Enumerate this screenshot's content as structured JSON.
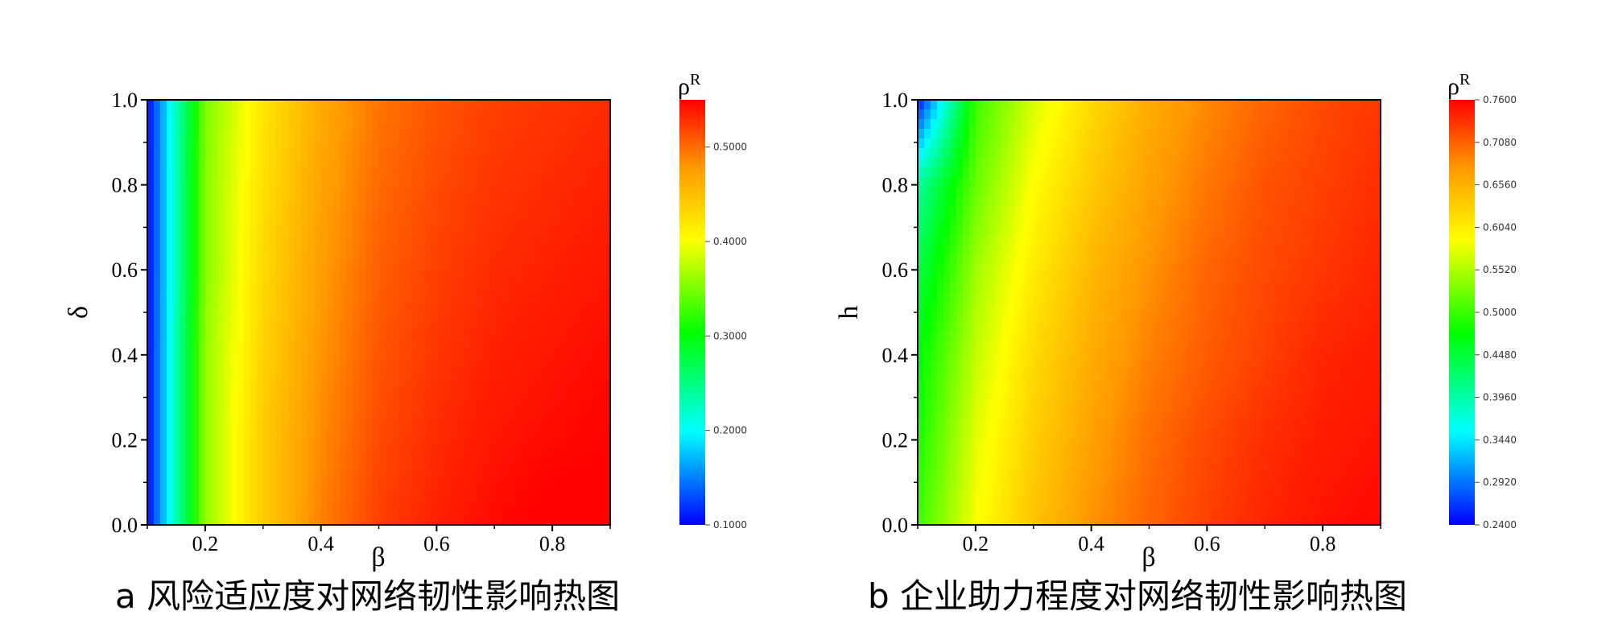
{
  "chart_data": [
    {
      "type": "heatmap",
      "caption": "a 风险适应度对网络韧性影响热图",
      "xlabel": "β",
      "ylabel": "δ",
      "colorbar_title": "ρ",
      "colorbar_title_sup": "R",
      "xlim": [
        0.1,
        0.9
      ],
      "ylim": [
        0.0,
        1.0
      ],
      "x_ticks": [
        0.2,
        0.4,
        0.6,
        0.8
      ],
      "x_tick_labels": [
        "0.2",
        "0.4",
        "0.6",
        "0.8"
      ],
      "y_ticks": [
        0.0,
        0.2,
        0.4,
        0.6,
        0.8,
        1.0
      ],
      "y_tick_labels": [
        "0.0",
        "0.2",
        "0.4",
        "0.6",
        "0.8",
        "1.0"
      ],
      "x": [
        0.1,
        0.2,
        0.3,
        0.4,
        0.5,
        0.6,
        0.7,
        0.8,
        0.9
      ],
      "y": [
        0.0,
        0.2,
        0.4,
        0.6,
        0.8,
        1.0
      ],
      "z": [
        [
          0.1,
          0.36,
          0.44,
          0.49,
          0.52,
          0.535,
          0.545,
          0.555,
          0.55
        ],
        [
          0.1,
          0.36,
          0.44,
          0.485,
          0.515,
          0.53,
          0.54,
          0.545,
          0.55
        ],
        [
          0.1,
          0.36,
          0.435,
          0.48,
          0.51,
          0.525,
          0.535,
          0.54,
          0.545
        ],
        [
          0.1,
          0.355,
          0.43,
          0.475,
          0.505,
          0.52,
          0.53,
          0.535,
          0.54
        ],
        [
          0.1,
          0.355,
          0.425,
          0.47,
          0.5,
          0.515,
          0.525,
          0.53,
          0.535
        ],
        [
          0.1,
          0.35,
          0.42,
          0.465,
          0.495,
          0.51,
          0.52,
          0.525,
          0.53
        ]
      ],
      "colorbar_range": [
        0.1,
        0.55
      ],
      "colorbar_ticks": [
        0.1,
        0.2,
        0.3,
        0.4,
        0.5
      ],
      "colorbar_tick_labels": [
        "0.1000",
        "0.2000",
        "0.3000",
        "0.4000",
        "0.5000"
      ]
    },
    {
      "type": "heatmap",
      "caption": "b 企业助力程度对网络韧性影响热图",
      "xlabel": "β",
      "ylabel": "h",
      "colorbar_title": "ρ",
      "colorbar_title_sup": "R",
      "xlim": [
        0.1,
        0.9
      ],
      "ylim": [
        0.0,
        1.0
      ],
      "x_ticks": [
        0.2,
        0.4,
        0.6,
        0.8
      ],
      "x_tick_labels": [
        "0.2",
        "0.4",
        "0.6",
        "0.8"
      ],
      "y_ticks": [
        0.0,
        0.2,
        0.4,
        0.6,
        0.8,
        1.0
      ],
      "y_tick_labels": [
        "0.0",
        "0.2",
        "0.4",
        "0.6",
        "0.8",
        "1.0"
      ],
      "x": [
        0.1,
        0.2,
        0.3,
        0.4,
        0.5,
        0.6,
        0.7,
        0.8,
        0.9
      ],
      "y": [
        0.0,
        0.2,
        0.4,
        0.6,
        0.8,
        1.0
      ],
      "z": [
        [
          0.5,
          0.585,
          0.64,
          0.68,
          0.705,
          0.725,
          0.74,
          0.75,
          0.755
        ],
        [
          0.485,
          0.575,
          0.63,
          0.67,
          0.7,
          0.72,
          0.735,
          0.745,
          0.75
        ],
        [
          0.47,
          0.56,
          0.62,
          0.66,
          0.69,
          0.71,
          0.725,
          0.74,
          0.745
        ],
        [
          0.44,
          0.545,
          0.605,
          0.65,
          0.68,
          0.705,
          0.72,
          0.73,
          0.74
        ],
        [
          0.4,
          0.52,
          0.59,
          0.635,
          0.67,
          0.695,
          0.715,
          0.725,
          0.735
        ],
        [
          0.25,
          0.5,
          0.57,
          0.62,
          0.66,
          0.685,
          0.705,
          0.72,
          0.73
        ]
      ],
      "colorbar_range": [
        0.24,
        0.76
      ],
      "colorbar_ticks": [
        0.24,
        0.292,
        0.344,
        0.396,
        0.448,
        0.5,
        0.552,
        0.604,
        0.656,
        0.708,
        0.76
      ],
      "colorbar_tick_labels": [
        "0.2400",
        "0.2920",
        "0.3440",
        "0.3960",
        "0.4480",
        "0.5000",
        "0.5520",
        "0.6040",
        "0.6560",
        "0.7080",
        "0.7600"
      ]
    }
  ]
}
